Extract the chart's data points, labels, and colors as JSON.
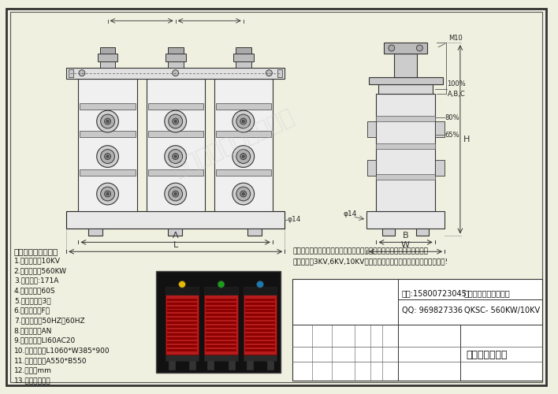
{
  "bg_color": "#f0f0e0",
  "border_color": "#333333",
  "tech_params_title": "启动电抗器技术参数",
  "tech_params": [
    "1.系统电压：10KV",
    "2.电机功率：560KW",
    "3.启动电流:171A",
    "4.启动时间：60S",
    "5.启动次数：3次",
    "6.绝缘等级：F级",
    "7.额定频率：50HZ、60HZ",
    "8.冷却方式：AN",
    "9.绝缘水平：LI60AC20",
    "10.外形尺寸：L1060*W385*900",
    "11.安装尺寸：A550*B550",
    "12.单位：mm",
    "13.材质：铜、铝"
  ],
  "company_text1": "我公司可根据客户提供技术参数及技术要求加工定制标准及非标准产品；",
  "company_text2": "系统电压有3KV,6KV,10KV等，均为干式铁芯环氧浸注式；详情请咨询!",
  "phone": "电话:15800723045",
  "qq": "QQ: 969827336",
  "company_name": "上海民恩电气有限公司",
  "model": "QKSC- 560KW/10KV",
  "product_name": "高压启动电抗器",
  "watermark": "上海民恩电气有限公司",
  "dim_A": "A",
  "dim_L": "L",
  "dim_B": "B",
  "dim_W": "W",
  "dim_H": "H",
  "label_M10": "M10",
  "label_100pct": "100%",
  "label_ABC": "A,B,C",
  "label_80pct": "80%",
  "label_65pct": "65%",
  "label_phi14": "φ14"
}
